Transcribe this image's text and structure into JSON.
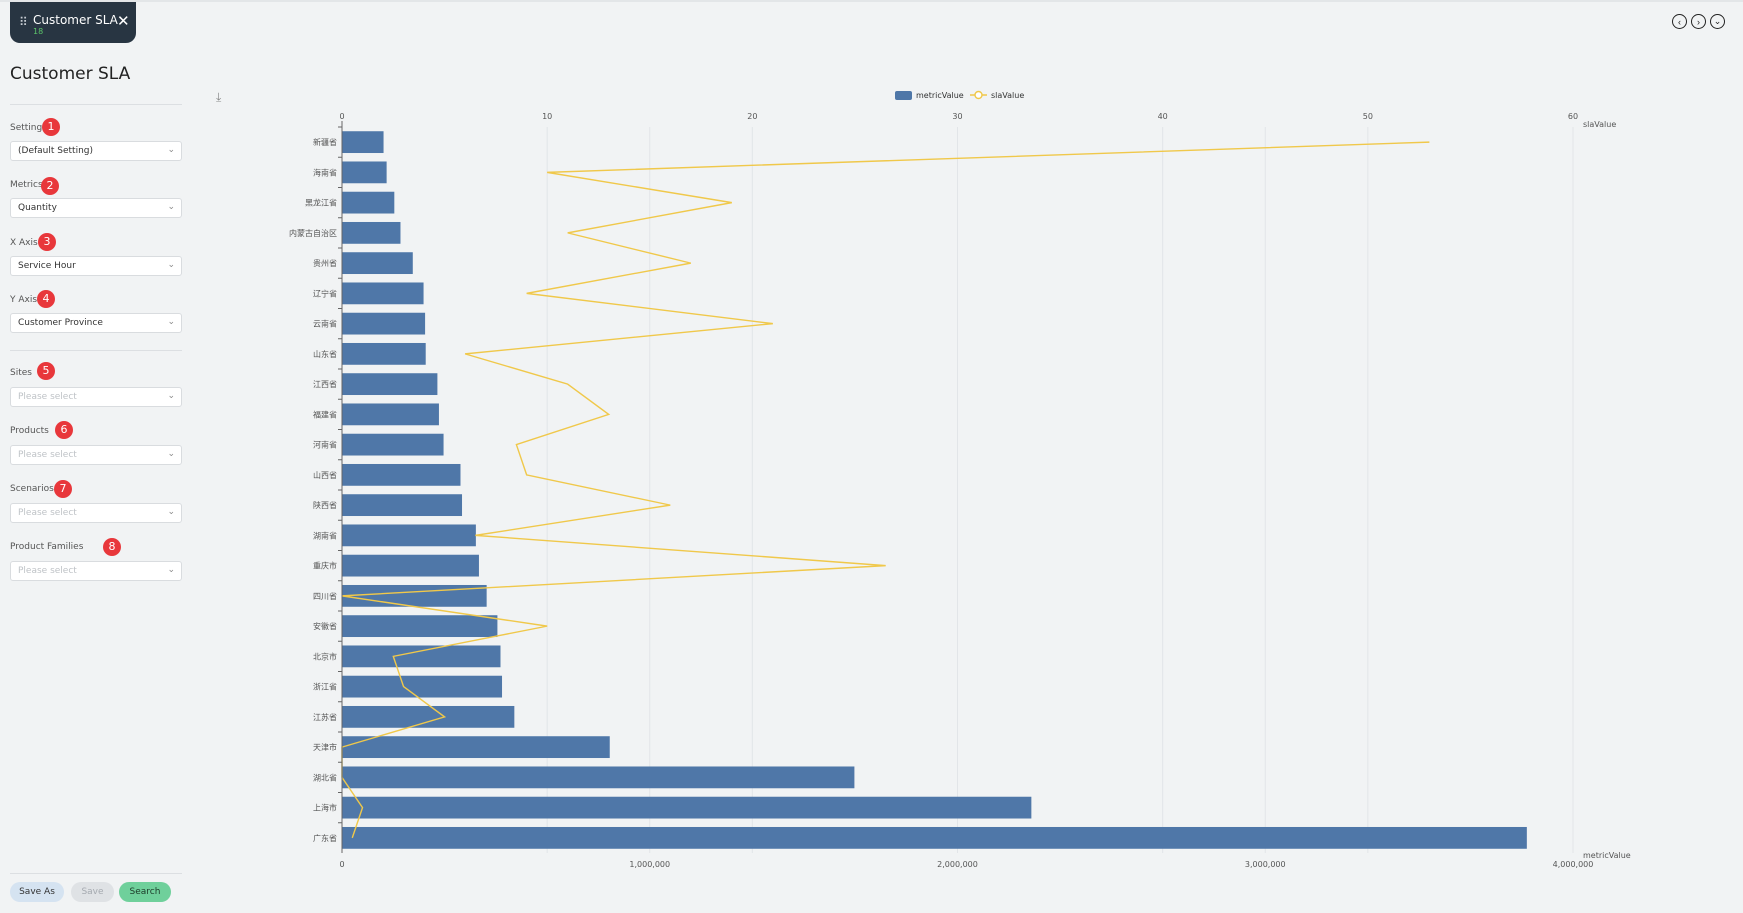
{
  "tab": {
    "title": "Customer SLA",
    "sub": "18",
    "grip": "⠿",
    "close": "✕"
  },
  "nav": {
    "prev": "‹",
    "next": "›",
    "down": "⌄"
  },
  "page_title": "Customer SLA",
  "filters": [
    {
      "label": "Setting",
      "badge": "1",
      "value": "(Default Setting)",
      "placeholder": false
    },
    {
      "label": "Metrics",
      "badge": "2",
      "value": "Quantity",
      "placeholder": false
    },
    {
      "label": "X Axis",
      "badge": "3",
      "value": "Service Hour",
      "placeholder": false
    },
    {
      "label": "Y Axis",
      "badge": "4",
      "value": "Customer Province",
      "placeholder": false
    },
    {
      "label": "Sites",
      "badge": "5",
      "value": "Please select",
      "placeholder": true
    },
    {
      "label": "Products",
      "badge": "6",
      "value": "Please select",
      "placeholder": true
    },
    {
      "label": "Scenarios",
      "badge": "7",
      "value": "Please select",
      "placeholder": true
    },
    {
      "label": "Product Families",
      "badge": "8",
      "value": "Please select",
      "placeholder": true
    }
  ],
  "buttons": {
    "save_as": "Save As",
    "save": "Save",
    "search": "Search"
  },
  "download_icon": "⤓",
  "chart_data": {
    "type": "bar",
    "orientation": "horizontal",
    "title": "",
    "legend": {
      "position": "top-center",
      "entries": [
        "metricValue",
        "slaValue"
      ]
    },
    "categories": [
      "新疆省",
      "海南省",
      "黑龙江省",
      "内蒙古自治区",
      "贵州省",
      "辽宁省",
      "云南省",
      "山东省",
      "江西省",
      "福建省",
      "河南省",
      "山西省",
      "陕西省",
      "湖南省",
      "重庆市",
      "四川省",
      "安徽省",
      "北京市",
      "浙江省",
      "江苏省",
      "天津市",
      "湖北省",
      "上海市",
      "广东省"
    ],
    "series": [
      {
        "name": "metricValue",
        "type": "bar",
        "color": "#4f77a8",
        "values": [
          135000,
          145000,
          170000,
          190000,
          230000,
          265000,
          270000,
          272000,
          310000,
          315000,
          330000,
          385000,
          390000,
          435000,
          445000,
          470000,
          505000,
          515000,
          520000,
          560000,
          870000,
          1665000,
          2240000,
          3850000
        ]
      },
      {
        "name": "slaValue",
        "type": "line",
        "color": "#f0c84a",
        "values": [
          53,
          10,
          19,
          11,
          17,
          9,
          21,
          6,
          11,
          13,
          8.5,
          9,
          16,
          6.5,
          26.5,
          0,
          10,
          2.5,
          3,
          5,
          0,
          0,
          1,
          0.5
        ]
      }
    ],
    "x_bottom": {
      "name": "metricValue",
      "min": 0,
      "max": 4000000,
      "ticks": [
        "0",
        "1,000,000",
        "2,000,000",
        "3,000,000",
        "4,000,000"
      ],
      "tick_values": [
        0,
        1000000,
        2000000,
        3000000,
        4000000
      ]
    },
    "x_top": {
      "name": "slaValue",
      "min": 0,
      "max": 60,
      "ticks": [
        "0",
        "10",
        "20",
        "30",
        "40",
        "50",
        "60"
      ],
      "tick_values": [
        0,
        10,
        20,
        30,
        40,
        50,
        60
      ]
    },
    "grid": true
  }
}
